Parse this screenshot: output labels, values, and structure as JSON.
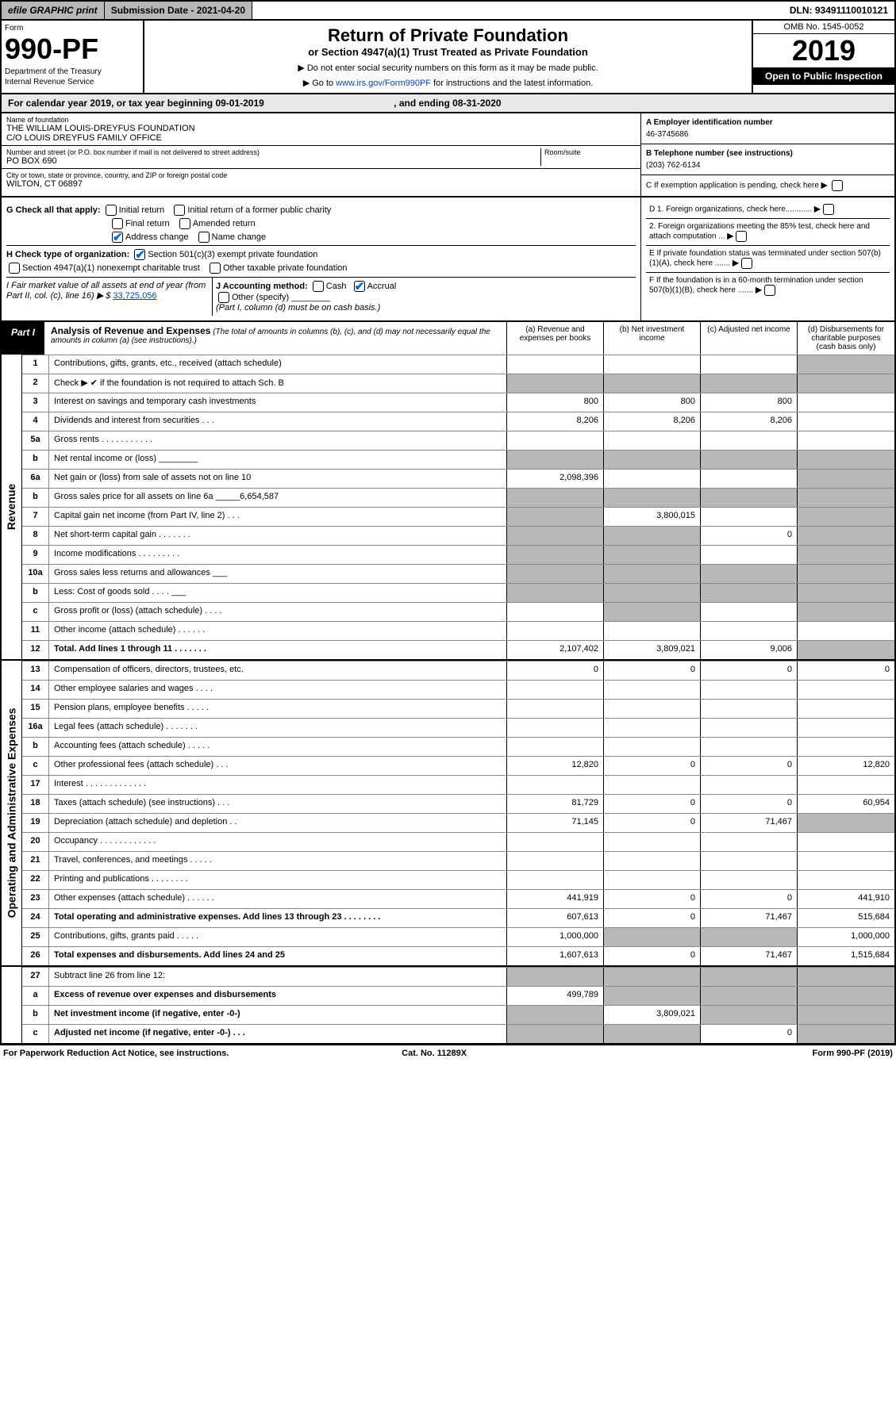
{
  "topbar": {
    "efile": "efile GRAPHIC print",
    "subdate": "Submission Date - 2021-04-20",
    "dln": "DLN: 93491110010121"
  },
  "header": {
    "form": "Form",
    "formno": "990-PF",
    "dept1": "Department of the Treasury",
    "dept2": "Internal Revenue Service",
    "title": "Return of Private Foundation",
    "subtitle": "or Section 4947(a)(1) Trust Treated as Private Foundation",
    "note1": "▶ Do not enter social security numbers on this form as it may be made public.",
    "note2_pre": "▶ Go to ",
    "note2_link": "www.irs.gov/Form990PF",
    "note2_post": " for instructions and the latest information.",
    "omb": "OMB No. 1545-0052",
    "year": "2019",
    "open": "Open to Public Inspection"
  },
  "calyear": {
    "pre": "For calendar year 2019, or tax year beginning 09-01-2019",
    "mid": ", and ending 08-31-2020"
  },
  "id": {
    "name_lbl": "Name of foundation",
    "name1": "THE WILLIAM LOUIS-DREYFUS FOUNDATION",
    "name2": "C/O LOUIS DREYFUS FAMILY OFFICE",
    "addr_lbl": "Number and street (or P.O. box number if mail is not delivered to street address)",
    "room_lbl": "Room/suite",
    "addr": "PO BOX 690",
    "city_lbl": "City or town, state or province, country, and ZIP or foreign postal code",
    "city": "WILTON, CT  06897",
    "a_lbl": "A Employer identification number",
    "a_val": "46-3745686",
    "b_lbl": "B Telephone number (see instructions)",
    "b_val": "(203) 762-6134",
    "c_lbl": "C If exemption application is pending, check here"
  },
  "g": {
    "lbl": "G Check all that apply:",
    "o1": "Initial return",
    "o2": "Initial return of a former public charity",
    "o3": "Final return",
    "o4": "Amended return",
    "o5": "Address change",
    "o6": "Name change"
  },
  "h": {
    "lbl": "H Check type of organization:",
    "o1": "Section 501(c)(3) exempt private foundation",
    "o2": "Section 4947(a)(1) nonexempt charitable trust",
    "o3": "Other taxable private foundation"
  },
  "i": {
    "lbl": "I Fair market value of all assets at end of year (from Part II, col. (c), line 16) ▶ $ ",
    "val": "33,725,056"
  },
  "j": {
    "lbl": "J Accounting method:",
    "o1": "Cash",
    "o2": "Accrual",
    "o3": "Other (specify)",
    "note": "(Part I, column (d) must be on cash basis.)"
  },
  "d": {
    "d1": "D 1. Foreign organizations, check here............",
    "d2": "2. Foreign organizations meeting the 85% test, check here and attach computation ...",
    "e": "E  If private foundation status was terminated under section 507(b)(1)(A), check here .......",
    "f": "F  If the foundation is in a 60-month termination under section 507(b)(1)(B), check here ......."
  },
  "part1": {
    "tag": "Part I",
    "title": "Analysis of Revenue and Expenses",
    "title_note": "(The total of amounts in columns (b), (c), and (d) may not necessarily equal the amounts in column (a) (see instructions).)",
    "ca": "(a)   Revenue and expenses per books",
    "cb": "(b)  Net investment income",
    "cc": "(c)  Adjusted net income",
    "cd": "(d)  Disbursements for charitable purposes (cash basis only)"
  },
  "side": {
    "rev": "Revenue",
    "exp": "Operating and Administrative Expenses"
  },
  "rows": {
    "r1": {
      "n": "1",
      "d": "Contributions, gifts, grants, etc., received (attach schedule)"
    },
    "r2": {
      "n": "2",
      "d": "Check ▶ ✔ if the foundation is not required to attach Sch. B"
    },
    "r3": {
      "n": "3",
      "d": "Interest on savings and temporary cash investments",
      "a": "800",
      "b": "800",
      "c": "800"
    },
    "r4": {
      "n": "4",
      "d": "Dividends and interest from securities   .   .   .",
      "a": "8,206",
      "b": "8,206",
      "c": "8,206"
    },
    "r5a": {
      "n": "5a",
      "d": "Gross rents   .   .   .   .   .   .   .   .   .   .   ."
    },
    "r5b": {
      "n": "b",
      "d": "Net rental income or (loss) ________"
    },
    "r6a": {
      "n": "6a",
      "d": "Net gain or (loss) from sale of assets not on line 10",
      "a": "2,098,396"
    },
    "r6b": {
      "n": "b",
      "d": "Gross sales price for all assets on line 6a _____6,654,587"
    },
    "r7": {
      "n": "7",
      "d": "Capital gain net income (from Part IV, line 2)   .   .   .",
      "b": "3,800,015"
    },
    "r8": {
      "n": "8",
      "d": "Net short-term capital gain   .   .   .   .   .   .   .",
      "c": "0"
    },
    "r9": {
      "n": "9",
      "d": "Income modifications  .   .   .   .   .   .   .   .   ."
    },
    "r10a": {
      "n": "10a",
      "d": "Gross sales less returns and allowances ___"
    },
    "r10b": {
      "n": "b",
      "d": "Less: Cost of goods sold     .   .   .   . ___"
    },
    "r10c": {
      "n": "c",
      "d": "Gross profit or (loss) (attach schedule)    .   .   .   ."
    },
    "r11": {
      "n": "11",
      "d": "Other income (attach schedule)    .   .   .   .   .   ."
    },
    "r12": {
      "n": "12",
      "d": "Total. Add lines 1 through 11    .   .   .   .   .   .   .",
      "a": "2,107,402",
      "b": "3,809,021",
      "c": "9,006"
    },
    "r13": {
      "n": "13",
      "d": "Compensation of officers, directors, trustees, etc.",
      "a": "0",
      "b": "0",
      "c": "0",
      "dd": "0"
    },
    "r14": {
      "n": "14",
      "d": "Other employee salaries and wages    .   .   .   ."
    },
    "r15": {
      "n": "15",
      "d": "Pension plans, employee benefits   .   .   .   .   ."
    },
    "r16a": {
      "n": "16a",
      "d": "Legal fees (attach schedule)  .   .   .   .   .   .   ."
    },
    "r16b": {
      "n": "b",
      "d": "Accounting fees (attach schedule)   .   .   .   .   ."
    },
    "r16c": {
      "n": "c",
      "d": "Other professional fees (attach schedule)    .   .   .",
      "a": "12,820",
      "b": "0",
      "c": "0",
      "dd": "12,820"
    },
    "r17": {
      "n": "17",
      "d": "Interest  .   .   .   .   .   .   .   .   .   .   .   .   ."
    },
    "r18": {
      "n": "18",
      "d": "Taxes (attach schedule) (see instructions)    .   .   .",
      "a": "81,729",
      "b": "0",
      "c": "0",
      "dd": "60,954"
    },
    "r19": {
      "n": "19",
      "d": "Depreciation (attach schedule) and depletion    .   .",
      "a": "71,145",
      "b": "0",
      "c": "71,467"
    },
    "r20": {
      "n": "20",
      "d": "Occupancy  .   .   .   .   .   .   .   .   .   .   .   ."
    },
    "r21": {
      "n": "21",
      "d": "Travel, conferences, and meetings  .   .   .   .   ."
    },
    "r22": {
      "n": "22",
      "d": "Printing and publications  .   .   .   .   .   .   .   ."
    },
    "r23": {
      "n": "23",
      "d": "Other expenses (attach schedule)  .   .   .   .   .   .",
      "a": "441,919",
      "b": "0",
      "c": "0",
      "dd": "441,910"
    },
    "r24": {
      "n": "24",
      "d": "Total operating and administrative expenses. Add lines 13 through 23   .   .   .   .   .   .   .   .",
      "a": "607,613",
      "b": "0",
      "c": "71,467",
      "dd": "515,684"
    },
    "r25": {
      "n": "25",
      "d": "Contributions, gifts, grants paid     .   .   .   .   .",
      "a": "1,000,000",
      "dd": "1,000,000"
    },
    "r26": {
      "n": "26",
      "d": "Total expenses and disbursements. Add lines 24 and 25",
      "a": "1,607,613",
      "b": "0",
      "c": "71,467",
      "dd": "1,515,684"
    },
    "r27": {
      "n": "27",
      "d": "Subtract line 26 from line 12:"
    },
    "r27a": {
      "n": "a",
      "d": "Excess of revenue over expenses and disbursements",
      "a": "499,789"
    },
    "r27b": {
      "n": "b",
      "d": "Net investment income (if negative, enter -0-)",
      "b": "3,809,021"
    },
    "r27c": {
      "n": "c",
      "d": "Adjusted net income (if negative, enter -0-)   .   .   .",
      "c": "0"
    }
  },
  "footer": {
    "l": "For Paperwork Reduction Act Notice, see instructions.",
    "m": "Cat. No. 11289X",
    "r": "Form 990-PF (2019)"
  }
}
